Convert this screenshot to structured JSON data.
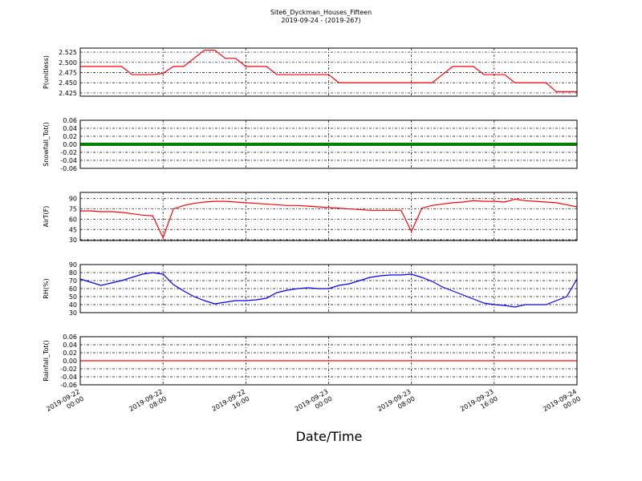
{
  "chart_data": {
    "type": "line",
    "title": "Site6_Dyckman_Houses_Fifteen",
    "subtitle": "2019-09-24 - (2019-267)",
    "xlabel": "Date/Time",
    "grid": true,
    "xlim": [
      "2019-09-22 00:00",
      "2019-09-24 00:00"
    ],
    "xticks": [
      "2019-09-22 00:00",
      "2019-09-22 08:00",
      "2019-09-22 16:00",
      "2019-09-23 00:00",
      "2019-09-23 08:00",
      "2019-09-23 16:00",
      "2019-09-24 00:00"
    ],
    "x": [
      "2019-09-22 00:00",
      "2019-09-22 01:00",
      "2019-09-22 02:00",
      "2019-09-22 03:00",
      "2019-09-22 04:00",
      "2019-09-22 05:00",
      "2019-09-22 06:00",
      "2019-09-22 07:00",
      "2019-09-22 08:00",
      "2019-09-22 09:00",
      "2019-09-22 10:00",
      "2019-09-22 11:00",
      "2019-09-22 12:00",
      "2019-09-22 13:00",
      "2019-09-22 14:00",
      "2019-09-22 15:00",
      "2019-09-22 16:00",
      "2019-09-22 17:00",
      "2019-09-22 18:00",
      "2019-09-22 19:00",
      "2019-09-22 20:00",
      "2019-09-22 21:00",
      "2019-09-22 22:00",
      "2019-09-22 23:00",
      "2019-09-23 00:00",
      "2019-09-23 01:00",
      "2019-09-23 02:00",
      "2019-09-23 03:00",
      "2019-09-23 04:00",
      "2019-09-23 05:00",
      "2019-09-23 06:00",
      "2019-09-23 07:00",
      "2019-09-23 08:00",
      "2019-09-23 09:00",
      "2019-09-23 10:00",
      "2019-09-23 11:00",
      "2019-09-23 12:00",
      "2019-09-23 13:00",
      "2019-09-23 14:00",
      "2019-09-23 15:00",
      "2019-09-23 16:00",
      "2019-09-23 17:00",
      "2019-09-23 18:00",
      "2019-09-23 19:00",
      "2019-09-23 20:00",
      "2019-09-23 21:00",
      "2019-09-23 22:00",
      "2019-09-23 23:00",
      "2019-09-24 00:00"
    ],
    "panels": [
      {
        "ylabel": "P(unitless)",
        "color": "#ff0000",
        "ylim": [
          2.417,
          2.535
        ],
        "yticks": [
          {
            "value": 2.425,
            "label": "2.425"
          },
          {
            "value": 2.45,
            "label": "2.450"
          },
          {
            "value": 2.475,
            "label": "2.475"
          },
          {
            "value": 2.5,
            "label": "2.500"
          },
          {
            "value": 2.525,
            "label": "2.525"
          }
        ],
        "values": [
          2.49,
          2.49,
          2.49,
          2.49,
          2.49,
          2.47,
          2.47,
          2.47,
          2.473,
          2.49,
          2.49,
          2.51,
          2.53,
          2.53,
          2.51,
          2.51,
          2.49,
          2.49,
          2.49,
          2.47,
          2.47,
          2.47,
          2.47,
          2.47,
          2.47,
          2.45,
          2.45,
          2.45,
          2.45,
          2.45,
          2.45,
          2.45,
          2.45,
          2.45,
          2.45,
          2.47,
          2.49,
          2.49,
          2.49,
          2.47,
          2.47,
          2.47,
          2.45,
          2.45,
          2.45,
          2.45,
          2.428,
          2.428,
          2.428
        ]
      },
      {
        "ylabel": "Snowfall_Tot()",
        "color": "#008000",
        "ylim": [
          -0.06,
          0.06
        ],
        "yticks": [
          -0.06,
          -0.04,
          -0.02,
          {
            "value": 0,
            "label": "0.00"
          },
          0.02,
          0.04,
          0.06
        ],
        "values": [
          0,
          0,
          0,
          0,
          0,
          0,
          0,
          0,
          0,
          0,
          0,
          0,
          0,
          0,
          0,
          0,
          0,
          0,
          0,
          0,
          0,
          0,
          0,
          0,
          0,
          0,
          0,
          0,
          0,
          0,
          0,
          0,
          0,
          0,
          0,
          0,
          0,
          0,
          0,
          0,
          0,
          0,
          0,
          0,
          0,
          0,
          0,
          0,
          0
        ]
      },
      {
        "ylabel": "AirT(F)",
        "color": "#ff0000",
        "ylim": [
          29,
          99
        ],
        "yticks": [
          30,
          45,
          60,
          75,
          90
        ],
        "values": [
          72,
          72,
          71,
          71,
          70,
          68,
          66,
          65,
          33,
          75,
          80,
          83,
          85,
          86,
          86,
          85,
          84,
          83,
          82,
          81,
          80,
          80,
          79,
          78,
          77,
          76,
          75,
          74,
          73,
          73,
          73,
          73,
          42,
          76,
          80,
          82,
          84,
          85,
          87,
          86,
          86,
          85,
          89,
          87,
          86,
          85,
          84,
          81,
          78
        ]
      },
      {
        "ylabel": "RH(%)",
        "color": "#0000ff",
        "ylim": [
          30,
          90
        ],
        "yticks": [
          30,
          40,
          50,
          60,
          70,
          80,
          90
        ],
        "values": [
          72,
          68,
          64,
          67,
          70,
          74,
          78,
          80,
          78,
          65,
          57,
          50,
          45,
          41,
          43,
          45,
          45,
          46,
          48,
          55,
          58,
          60,
          61,
          60,
          60,
          64,
          66,
          70,
          74,
          76,
          77,
          77,
          78,
          74,
          69,
          62,
          57,
          52,
          47,
          42,
          40,
          39,
          37,
          40,
          40,
          40,
          45,
          50,
          72
        ]
      },
      {
        "ylabel": "Rainfall_Tot()",
        "color": "#ff0000",
        "ylim": [
          -0.06,
          0.06
        ],
        "yticks": [
          -0.06,
          -0.04,
          -0.02,
          {
            "value": 0,
            "label": "0.00"
          },
          0.02,
          0.04,
          0.06
        ],
        "values": [
          0,
          0,
          0,
          0,
          0,
          0,
          0,
          0,
          0,
          0,
          0,
          0,
          0,
          0,
          0,
          0,
          0,
          0,
          0,
          0,
          0,
          0,
          0,
          0,
          0,
          0,
          0,
          0,
          0,
          0,
          0,
          0,
          0,
          0,
          0,
          0,
          0,
          0,
          0,
          0,
          0,
          0,
          0,
          0,
          0,
          0,
          0,
          0,
          0
        ]
      }
    ]
  }
}
